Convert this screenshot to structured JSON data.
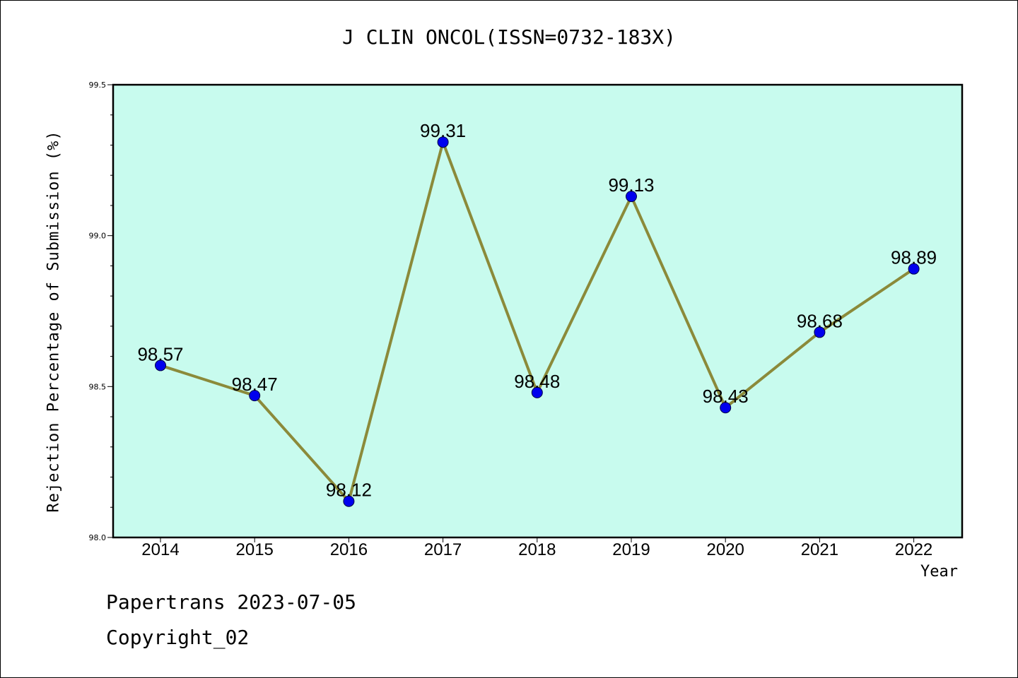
{
  "chart_data": {
    "type": "line",
    "title": "J CLIN ONCOL(ISSN=0732-183X)",
    "xlabel": "Year",
    "ylabel": "Rejection Percentage of Submission (%)",
    "categories": [
      "2014",
      "2015",
      "2016",
      "2017",
      "2018",
      "2019",
      "2020",
      "2021",
      "2022"
    ],
    "series": [
      {
        "values": [
          98.57,
          98.47,
          98.12,
          99.31,
          98.48,
          99.13,
          98.43,
          98.68,
          98.89
        ]
      }
    ],
    "data_labels": [
      "98.57",
      "98.47",
      "98.12",
      "99.31",
      "98.48",
      "99.13",
      "98.43",
      "98.68",
      "98.89"
    ],
    "ylim": [
      98.0,
      99.5
    ],
    "yticks": [
      "98.0",
      "98.5",
      "99.0",
      "99.5"
    ],
    "grid": false,
    "colors": {
      "plot_background": "#c8fbee",
      "line": "#8b8a3a",
      "marker": "#0000ee"
    }
  },
  "footer": {
    "line1": "Papertrans 2023-07-05",
    "line2": "Copyright_02"
  }
}
